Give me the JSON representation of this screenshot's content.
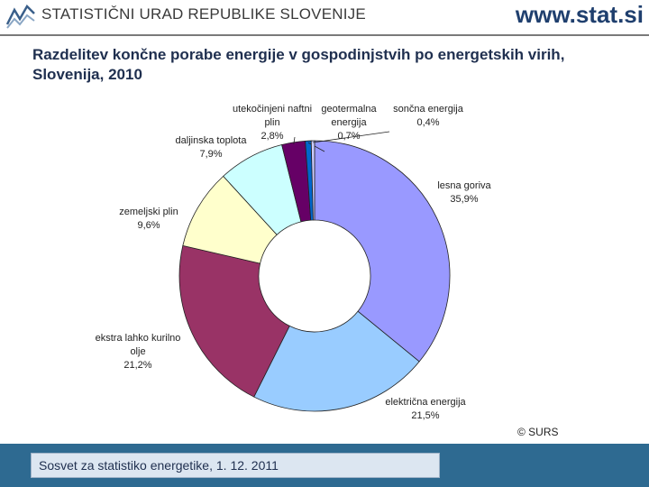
{
  "header": {
    "org_name": "STATISTIČNI URAD REPUBLIKE SLOVENIJE",
    "site": "www.stat.si"
  },
  "colors": {
    "brand": "#1f3f6e",
    "footer_bar": "#2e6a91"
  },
  "chart_data": {
    "type": "pie",
    "variant": "donut",
    "title": "Razdelitev končne porabe energije v gospodinjstvih po energetskih virih, Slovenija, 2010",
    "unit": "%",
    "categories": [
      "lesna goriva",
      "električna energija",
      "ekstra lahko kurilno olje",
      "zemeljski plin",
      "daljinska toplota",
      "utekočinjeni naftni plin",
      "geotermalna energija",
      "sončna energija"
    ],
    "values": [
      35.9,
      21.5,
      21.2,
      9.6,
      7.9,
      2.8,
      0.7,
      0.4
    ],
    "value_labels": [
      "35,9%",
      "21,5%",
      "21,2%",
      "9,6%",
      "7,9%",
      "2,8%",
      "0,7%",
      "0,4%"
    ],
    "label_lines": [
      [
        "lesna goriva"
      ],
      [
        "električna energija"
      ],
      [
        "ekstra lahko kurilno",
        "olje"
      ],
      [
        "zemeljski plin"
      ],
      [
        "daljinska toplota"
      ],
      [
        "utekočinjeni naftni",
        "plin"
      ],
      [
        "geotermalna",
        "energija"
      ],
      [
        "sončna energija"
      ]
    ],
    "colors": [
      "#9999ff",
      "#99ccff",
      "#993366",
      "#ffffcc",
      "#ccffff",
      "#660066",
      "#0066cc",
      "#ccccff"
    ],
    "credit": "© SURS"
  },
  "footer": {
    "text": "Sosvet za statistiko energetike, 1. 12. 2011"
  }
}
